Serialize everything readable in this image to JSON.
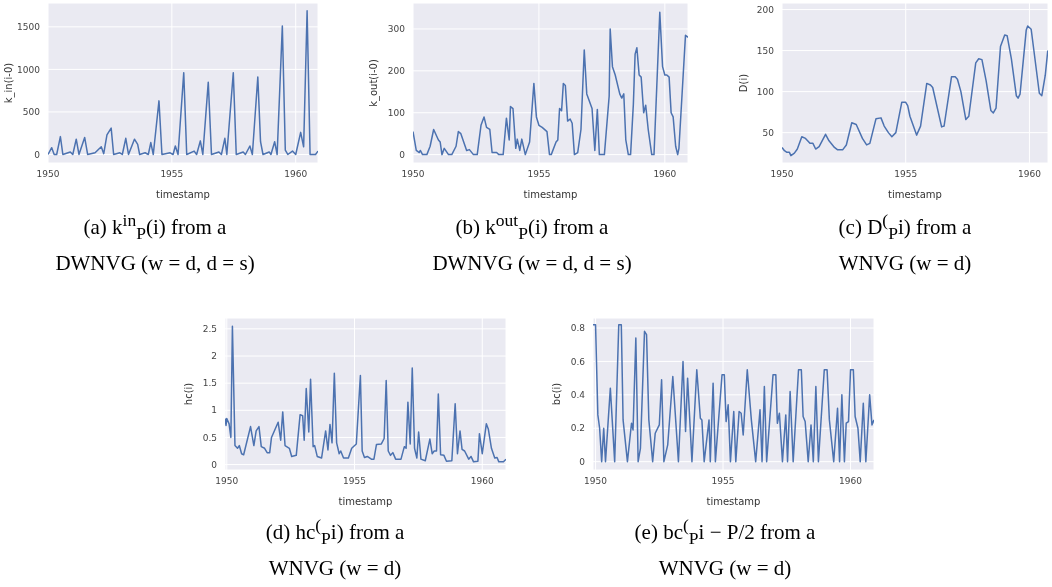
{
  "chart_data": [
    {
      "type": "line",
      "xlabel": "timestamp",
      "ylabel": "k_in(i-0)",
      "color": "#4c72b0",
      "grid": true,
      "xlim": [
        1950,
        1960.9
      ],
      "xticks": [
        1950,
        1955,
        1960
      ],
      "ylim": [
        -100,
        1780
      ],
      "yticks": [
        0,
        500,
        1000,
        1500
      ],
      "annotations": [
        "(a)  k$^{in}$$_{P}$(i) from a\nDWNVG (w = d, d = s)"
      ],
      "x": [
        1950,
        1950.15,
        1950.25,
        1950.35,
        1950.5,
        1950.6,
        1950.9,
        1951,
        1951.14,
        1951.25,
        1951.48,
        1951.6,
        1951.9,
        1952.15,
        1952.25,
        1952.38,
        1952.55,
        1952.65,
        1952.9,
        1953,
        1953.14,
        1953.25,
        1953.49,
        1953.62,
        1953.7,
        1953.92,
        1954.05,
        1954.15,
        1954.25,
        1954.48,
        1954.6,
        1954.93,
        1955.05,
        1955.14,
        1955.25,
        1955.48,
        1955.6,
        1955.9,
        1956,
        1956.15,
        1956.25,
        1956.47,
        1956.6,
        1956.9,
        1957,
        1957.14,
        1957.22,
        1957.48,
        1957.6,
        1957.88,
        1957.97,
        1958.15,
        1958.25,
        1958.47,
        1958.58,
        1958.68,
        1958.93,
        1959,
        1959.15,
        1959.25,
        1959.46,
        1959.58,
        1959.68,
        1959.87,
        1960,
        1960.2,
        1960.32,
        1960.46,
        1960.58,
        1960.8,
        1960.9
      ],
      "values": [
        0,
        80,
        0,
        0,
        210,
        0,
        30,
        0,
        180,
        0,
        200,
        0,
        20,
        90,
        10,
        230,
        310,
        0,
        20,
        0,
        190,
        0,
        180,
        120,
        0,
        20,
        0,
        140,
        0,
        630,
        0,
        20,
        0,
        100,
        0,
        960,
        0,
        40,
        0,
        160,
        0,
        850,
        0,
        30,
        0,
        190,
        0,
        960,
        0,
        30,
        0,
        100,
        0,
        910,
        150,
        0,
        30,
        0,
        150,
        0,
        1510,
        50,
        0,
        40,
        0,
        260,
        90,
        1690,
        0,
        0,
        40
      ]
    },
    {
      "type": "line",
      "xlabel": "timestamp",
      "ylabel": "k_out(i-0)",
      "color": "#4c72b0",
      "grid": true,
      "xlim": [
        1950,
        1960.92
      ],
      "xticks": [
        1950,
        1955,
        1960
      ],
      "ylim": [
        -20,
        362
      ],
      "yticks": [
        0,
        100,
        200,
        300
      ],
      "annotations": [
        "(b)  k$^{out}$$_{P}$(i) from a\nDWNVG (w = d, d = s)"
      ],
      "x": [
        1950,
        1950.13,
        1950.25,
        1950.29,
        1950.38,
        1950.55,
        1950.68,
        1950.82,
        1951.01,
        1951.08,
        1951.15,
        1951.24,
        1951.41,
        1951.54,
        1951.71,
        1951.8,
        1951.9,
        1952.13,
        1952.24,
        1952.4,
        1952.55,
        1952.7,
        1952.82,
        1952.92,
        1953.05,
        1953.14,
        1953.32,
        1953.41,
        1953.58,
        1953.71,
        1953.82,
        1953.87,
        1953.97,
        1954.08,
        1954.14,
        1954.24,
        1954.32,
        1954.46,
        1954.63,
        1954.8,
        1954.9,
        1955,
        1955.13,
        1955.32,
        1955.42,
        1955.49,
        1955.68,
        1955.75,
        1955.82,
        1955.9,
        1955.97,
        1956.05,
        1956.14,
        1956.24,
        1956.32,
        1956.41,
        1956.54,
        1956.67,
        1956.8,
        1956.9,
        1957.11,
        1957.22,
        1957.32,
        1957.4,
        1957.6,
        1957.79,
        1957.83,
        1957.92,
        1958.03,
        1958.21,
        1958.29,
        1958.37,
        1958.45,
        1958.55,
        1958.64,
        1958.75,
        1958.82,
        1958.89,
        1958.98,
        1959.06,
        1959.16,
        1959.24,
        1959.34,
        1959.48,
        1959.57,
        1959.8,
        1959.91,
        1960,
        1960.08,
        1960.17,
        1960.25,
        1960.33,
        1960.43,
        1960.51,
        1960.56,
        1960.82,
        1960.92
      ],
      "values": [
        55,
        10,
        5,
        10,
        0,
        0,
        20,
        60,
        35,
        30,
        0,
        15,
        0,
        0,
        20,
        55,
        50,
        10,
        12,
        0,
        0,
        70,
        90,
        65,
        60,
        5,
        5,
        0,
        0,
        87,
        35,
        115,
        110,
        15,
        37,
        10,
        37,
        0,
        30,
        170,
        90,
        70,
        65,
        55,
        0,
        0,
        30,
        35,
        110,
        105,
        170,
        165,
        80,
        85,
        75,
        0,
        5,
        60,
        250,
        145,
        110,
        10,
        108,
        0,
        0,
        140,
        300,
        210,
        190,
        145,
        135,
        145,
        35,
        0,
        0,
        120,
        240,
        255,
        190,
        185,
        100,
        118,
        60,
        0,
        0,
        340,
        210,
        190,
        190,
        185,
        100,
        90,
        20,
        0,
        15,
        285,
        280
      ]
    },
    {
      "type": "line",
      "xlabel": "timestamp",
      "ylabel": "D(i)",
      "color": "#4c72b0",
      "grid": true,
      "xlim": [
        1950,
        1960.75
      ],
      "xticks": [
        1950,
        1955,
        1960
      ],
      "ylim": [
        13,
        208
      ],
      "yticks": [
        50,
        100,
        150,
        200
      ],
      "annotations": [
        "(c)  D$^{(}$$_{P}$i) from a\nWNVG (w = d)"
      ],
      "x": [
        1950,
        1950.1,
        1950.2,
        1950.3,
        1950.36,
        1950.5,
        1950.62,
        1950.8,
        1950.95,
        1951.13,
        1951.25,
        1951.36,
        1951.5,
        1951.76,
        1951.9,
        1952.12,
        1952.25,
        1952.45,
        1952.6,
        1952.82,
        1953,
        1953.25,
        1953.42,
        1953.55,
        1953.8,
        1954,
        1954.13,
        1954.3,
        1954.44,
        1954.6,
        1954.84,
        1955,
        1955.08,
        1955.17,
        1955.44,
        1955.6,
        1955.85,
        1956,
        1956.09,
        1956.45,
        1956.55,
        1956.85,
        1957,
        1957.09,
        1957.23,
        1957.43,
        1957.55,
        1957.83,
        1957.95,
        1958.08,
        1958.25,
        1958.44,
        1958.54,
        1958.65,
        1958.83,
        1959,
        1959.1,
        1959.27,
        1959.47,
        1959.54,
        1959.62,
        1959.87,
        1959.93,
        1960.07,
        1960.4,
        1960.5,
        1960.64,
        1960.74
      ],
      "values": [
        32,
        28,
        26,
        26,
        22,
        25,
        30,
        45,
        43,
        37,
        37,
        30,
        33,
        48,
        40,
        32,
        29,
        29,
        35,
        62,
        60,
        43,
        35,
        37,
        67,
        68,
        58,
        50,
        45,
        50,
        87,
        87,
        83,
        70,
        47,
        58,
        110,
        108,
        105,
        57,
        58,
        118,
        118,
        115,
        100,
        66,
        70,
        135,
        140,
        139,
        113,
        77,
        74,
        80,
        155,
        169,
        168,
        140,
        95,
        92,
        97,
        175,
        180,
        176,
        98,
        95,
        120,
        150
      ]
    },
    {
      "type": "line",
      "xlabel": "timestamp",
      "ylabel": "hc(i)",
      "color": "#4c72b0",
      "grid": true,
      "xlim": [
        1949.93,
        1960.93
      ],
      "xticks": [
        1950,
        1955,
        1960
      ],
      "ylim": [
        -0.1,
        2.7
      ],
      "yticks": [
        0,
        0.5,
        1,
        1.5,
        2,
        2.5
      ],
      "annotations": [
        "(d)  hc$^{(}$$_{P}$i) from a\nWNVG (w = d)"
      ],
      "x": [
        1949.93,
        1949.97,
        1950,
        1950.09,
        1950.16,
        1950.22,
        1950.32,
        1950.42,
        1950.49,
        1950.58,
        1950.66,
        1950.93,
        1951.06,
        1951.15,
        1951.26,
        1951.35,
        1951.48,
        1951.58,
        1951.68,
        1951.75,
        1952.01,
        1952.11,
        1952.19,
        1952.28,
        1952.45,
        1952.54,
        1952.72,
        1952.87,
        1952.97,
        1953.03,
        1953.11,
        1953.21,
        1953.28,
        1953.38,
        1953.44,
        1953.54,
        1953.71,
        1953.87,
        1953.96,
        1954.04,
        1954.12,
        1954.21,
        1954.3,
        1954.4,
        1954.46,
        1954.57,
        1954.76,
        1954.89,
        1955.07,
        1955.23,
        1955.3,
        1955.39,
        1955.5,
        1955.66,
        1955.76,
        1955.86,
        1956.05,
        1956.16,
        1956.24,
        1956.32,
        1956.41,
        1956.5,
        1956.61,
        1956.82,
        1956.95,
        1957.02,
        1957.09,
        1957.18,
        1957.26,
        1957.35,
        1957.44,
        1957.51,
        1957.6,
        1957.77,
        1957.95,
        1958.04,
        1958.12,
        1958.21,
        1958.28,
        1958.37,
        1958.5,
        1958.6,
        1958.81,
        1958.94,
        1959.03,
        1959.13,
        1959.21,
        1959.31,
        1959.47,
        1959.56,
        1959.66,
        1959.83,
        1959.89,
        1960,
        1960.16,
        1960.24,
        1960.36,
        1960.49,
        1960.58,
        1960.65,
        1960.83,
        1960.93
      ],
      "values": [
        0.85,
        0.72,
        0.85,
        0.75,
        0.5,
        2.55,
        0.35,
        0.3,
        0.35,
        0.2,
        0.18,
        0.7,
        0.35,
        0.62,
        0.7,
        0.33,
        0.3,
        0.22,
        0.22,
        0.5,
        0.78,
        0.45,
        0.97,
        0.35,
        0.3,
        0.15,
        0.17,
        0.92,
        0.9,
        0.45,
        1.4,
        0.6,
        1.57,
        0.33,
        0.35,
        0.15,
        0.12,
        0.62,
        0.27,
        0.74,
        0.4,
        1.68,
        0.4,
        0.2,
        0.25,
        0.12,
        0.12,
        0.3,
        0.38,
        1.64,
        0.25,
        0.13,
        0.15,
        0.1,
        0.1,
        0.37,
        0.38,
        0.48,
        1.55,
        0.25,
        0.17,
        0.22,
        0.1,
        0.1,
        0.33,
        0.3,
        1.15,
        0.38,
        1.78,
        0.3,
        0.12,
        0.6,
        0.1,
        0.07,
        0.47,
        0.2,
        0.25,
        0.25,
        1.3,
        0.18,
        0.17,
        0.06,
        0.07,
        1.12,
        0.2,
        0.62,
        0.28,
        0.25,
        0.1,
        0.15,
        0.05,
        0.06,
        0.57,
        0.2,
        0.75,
        0.65,
        0.3,
        0.12,
        0.13,
        0.05,
        0.05,
        0.1
      ]
    },
    {
      "type": "line",
      "xlabel": "timestamp",
      "ylabel": "bc(i)",
      "color": "#4c72b0",
      "grid": true,
      "xlim": [
        1949.9,
        1960.92
      ],
      "xticks": [
        1950,
        1955,
        1960
      ],
      "ylim": [
        -0.05,
        0.86
      ],
      "yticks": [
        0,
        0.2,
        0.4,
        0.6,
        0.8
      ],
      "annotations": [
        "(e)  bc$^{(}$$_{P}$i − P/2 from a\nWNVG (w = d)"
      ],
      "x": [
        1949.9,
        1950,
        1950.09,
        1950.16,
        1950.24,
        1950.32,
        1950.39,
        1950.58,
        1950.75,
        1950.91,
        1951.01,
        1951.08,
        1951.25,
        1951.41,
        1951.47,
        1951.58,
        1951.67,
        1951.76,
        1951.92,
        1952,
        1952.09,
        1952.24,
        1952.34,
        1952.5,
        1952.59,
        1952.68,
        1952.83,
        1953.03,
        1953.25,
        1953.43,
        1953.53,
        1953.61,
        1953.78,
        1953.97,
        1954.11,
        1954.17,
        1954.26,
        1954.45,
        1954.5,
        1954.61,
        1954.7,
        1954.96,
        1955.05,
        1955.12,
        1955.2,
        1955.29,
        1955.42,
        1955.5,
        1955.63,
        1955.71,
        1955.79,
        1955.95,
        1956.11,
        1956.28,
        1956.45,
        1956.53,
        1956.62,
        1956.71,
        1956.96,
        1957.07,
        1957.13,
        1957.21,
        1957.33,
        1957.46,
        1957.53,
        1957.63,
        1957.75,
        1957.96,
        1958.07,
        1958.14,
        1958.22,
        1958.34,
        1958.45,
        1958.54,
        1958.64,
        1958.74,
        1958.97,
        1959.08,
        1959.17,
        1959.34,
        1959.49,
        1959.57,
        1959.66,
        1959.76,
        1959.83,
        1959.92,
        1960,
        1960.11,
        1960.18,
        1960.29,
        1960.38,
        1960.5,
        1960.6,
        1960.75,
        1960.84,
        1960.92
      ],
      "values": [
        0.82,
        0.82,
        0.28,
        0.2,
        0,
        0.2,
        0,
        0.44,
        0,
        0.82,
        0.82,
        0.25,
        0,
        0.23,
        0.19,
        0.74,
        0,
        0.08,
        0.78,
        0.76,
        0.25,
        0,
        0.17,
        0.22,
        0.49,
        0,
        0.1,
        0.51,
        0,
        0.6,
        0.18,
        0.5,
        0,
        0.55,
        0.26,
        0.25,
        0,
        0.25,
        0,
        0.47,
        0,
        0.52,
        0.52,
        0.24,
        0.34,
        0,
        0.3,
        0,
        0.3,
        0.29,
        0.16,
        0.55,
        0.25,
        0,
        0.31,
        0,
        0.45,
        0,
        0.52,
        0.52,
        0.23,
        0.29,
        0,
        0.28,
        0,
        0.42,
        0,
        0.55,
        0.55,
        0.27,
        0.24,
        0,
        0.22,
        0,
        0.45,
        0,
        0.55,
        0.55,
        0.25,
        0,
        0.32,
        0,
        0.4,
        0,
        0.23,
        0.24,
        0.55,
        0.55,
        0.27,
        0.2,
        0,
        0.35,
        0,
        0.4,
        0.22,
        0.25
      ]
    }
  ]
}
